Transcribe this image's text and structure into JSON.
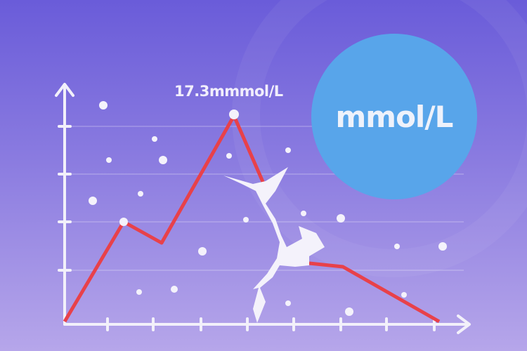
{
  "peak_label": "17.3mmmol/L",
  "unit_badge": "mmol/L",
  "colors": {
    "line": "#e8414a",
    "badge": "#58a5ea",
    "axis": "#f2f0fa"
  }
}
